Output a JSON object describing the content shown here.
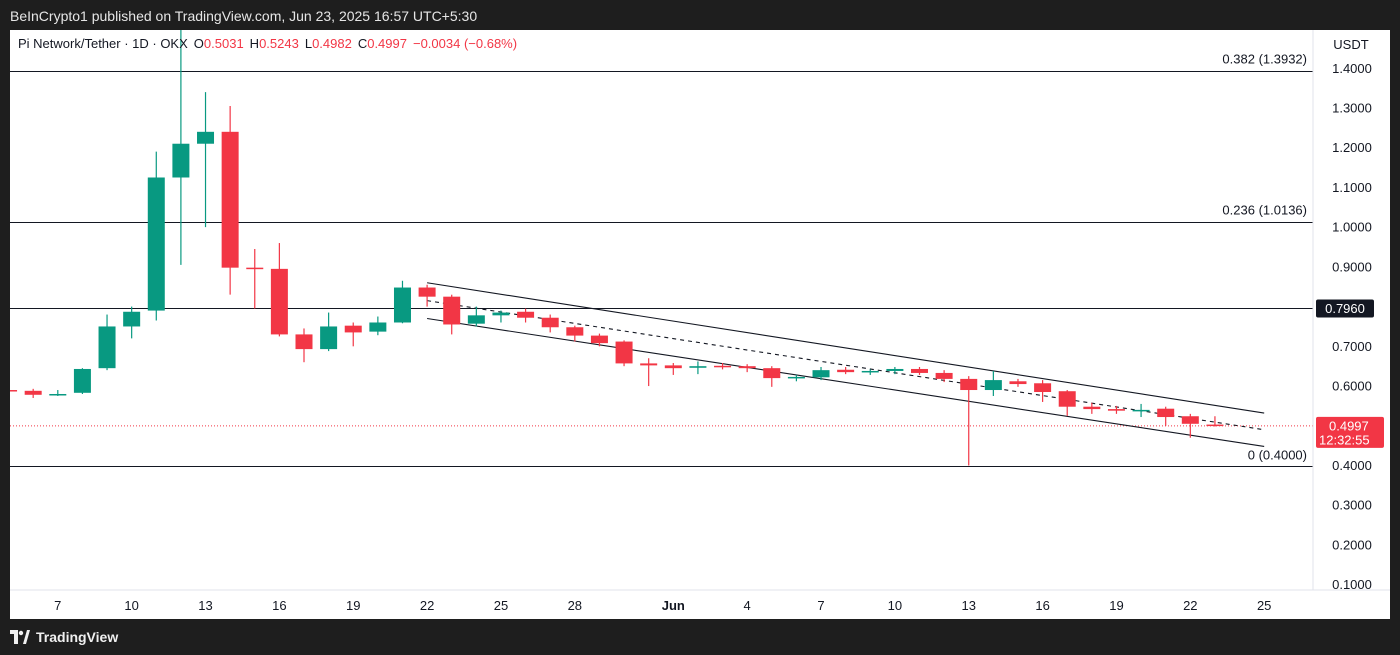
{
  "header": {
    "published": "BeInCrypto1 published on TradingView.com, Jun 23, 2025 16:57 UTC+5:30"
  },
  "legend": {
    "symbol": "Pi Network/Tether · 1D · OKX",
    "o_label": "O",
    "o_value": "0.5031",
    "h_label": "H",
    "h_value": "0.5243",
    "l_label": "L",
    "l_value": "0.4982",
    "c_label": "C",
    "c_value": "0.4997",
    "change": "−0.0034 (−0.68%)"
  },
  "footer": {
    "brand": "TradingView"
  },
  "colors": {
    "up": "#089981",
    "down": "#f23645",
    "line": "#131722",
    "text": "#131722",
    "axis_text": "#131722",
    "price_label_bg": "#f23645",
    "level_label_bg": "#131722"
  },
  "chart_data": {
    "type": "candlestick",
    "currency": "USDT",
    "ylim": [
      0.05,
      1.5
    ],
    "y_ticks": [
      "1.4000",
      "1.3000",
      "1.2000",
      "1.1000",
      "1.0000",
      "0.9000",
      "0.8000",
      "0.7000",
      "0.6000",
      "0.5000",
      "0.4000",
      "0.3000",
      "0.2000",
      "0.1000"
    ],
    "y_tick_values": [
      1.4,
      1.3,
      1.2,
      1.1,
      1.0,
      0.9,
      0.8,
      0.7,
      0.6,
      0.5,
      0.4,
      0.3,
      0.2,
      0.1
    ],
    "x_ticks": [
      {
        "label": "7",
        "day": 7
      },
      {
        "label": "10",
        "day": 10
      },
      {
        "label": "13",
        "day": 13
      },
      {
        "label": "16",
        "day": 16
      },
      {
        "label": "19",
        "day": 19
      },
      {
        "label": "22",
        "day": 22
      },
      {
        "label": "25",
        "day": 25
      },
      {
        "label": "28",
        "day": 28
      },
      {
        "label": "Jun",
        "day": 32,
        "bold": true
      },
      {
        "label": "4",
        "day": 35
      },
      {
        "label": "7",
        "day": 38
      },
      {
        "label": "10",
        "day": 41
      },
      {
        "label": "13",
        "day": 44
      },
      {
        "label": "16",
        "day": 47
      },
      {
        "label": "19",
        "day": 50
      },
      {
        "label": "22",
        "day": 53
      },
      {
        "label": "25",
        "day": 56
      }
    ],
    "candles": [
      {
        "d": 5,
        "o": 0.59,
        "h": 0.595,
        "l": 0.585,
        "c": 0.588
      },
      {
        "d": 6,
        "o": 0.588,
        "h": 0.593,
        "l": 0.57,
        "c": 0.578
      },
      {
        "d": 7,
        "o": 0.578,
        "h": 0.59,
        "l": 0.575,
        "c": 0.58
      },
      {
        "d": 8,
        "o": 0.583,
        "h": 0.645,
        "l": 0.58,
        "c": 0.643
      },
      {
        "d": 9,
        "o": 0.645,
        "h": 0.78,
        "l": 0.64,
        "c": 0.75
      },
      {
        "d": 10,
        "o": 0.75,
        "h": 0.8,
        "l": 0.72,
        "c": 0.787
      },
      {
        "d": 11,
        "o": 0.79,
        "h": 1.19,
        "l": 0.765,
        "c": 1.125
      },
      {
        "d": 12,
        "o": 1.125,
        "h": 1.66,
        "l": 0.905,
        "c": 1.21
      },
      {
        "d": 13,
        "o": 1.21,
        "h": 1.34,
        "l": 1.0,
        "c": 1.24
      },
      {
        "d": 14,
        "o": 1.24,
        "h": 1.305,
        "l": 0.83,
        "c": 0.898
      },
      {
        "d": 15,
        "o": 0.898,
        "h": 0.945,
        "l": 0.795,
        "c": 0.895
      },
      {
        "d": 16,
        "o": 0.895,
        "h": 0.96,
        "l": 0.725,
        "c": 0.73
      },
      {
        "d": 17,
        "o": 0.73,
        "h": 0.745,
        "l": 0.66,
        "c": 0.693
      },
      {
        "d": 18,
        "o": 0.693,
        "h": 0.785,
        "l": 0.688,
        "c": 0.75
      },
      {
        "d": 19,
        "o": 0.752,
        "h": 0.76,
        "l": 0.7,
        "c": 0.735
      },
      {
        "d": 20,
        "o": 0.737,
        "h": 0.775,
        "l": 0.728,
        "c": 0.76
      },
      {
        "d": 21,
        "o": 0.76,
        "h": 0.865,
        "l": 0.758,
        "c": 0.848
      },
      {
        "d": 22,
        "o": 0.848,
        "h": 0.855,
        "l": 0.8,
        "c": 0.825
      },
      {
        "d": 23,
        "o": 0.825,
        "h": 0.83,
        "l": 0.73,
        "c": 0.755
      },
      {
        "d": 24,
        "o": 0.757,
        "h": 0.8,
        "l": 0.75,
        "c": 0.778
      },
      {
        "d": 25,
        "o": 0.778,
        "h": 0.79,
        "l": 0.76,
        "c": 0.785
      },
      {
        "d": 26,
        "o": 0.787,
        "h": 0.795,
        "l": 0.76,
        "c": 0.772
      },
      {
        "d": 27,
        "o": 0.772,
        "h": 0.78,
        "l": 0.735,
        "c": 0.748
      },
      {
        "d": 28,
        "o": 0.748,
        "h": 0.752,
        "l": 0.712,
        "c": 0.727
      },
      {
        "d": 29,
        "o": 0.727,
        "h": 0.732,
        "l": 0.7,
        "c": 0.708
      },
      {
        "d": 30,
        "o": 0.712,
        "h": 0.715,
        "l": 0.65,
        "c": 0.657
      },
      {
        "d": 31,
        "o": 0.657,
        "h": 0.67,
        "l": 0.6,
        "c": 0.652
      },
      {
        "d": 32,
        "o": 0.652,
        "h": 0.658,
        "l": 0.628,
        "c": 0.645
      },
      {
        "d": 33,
        "o": 0.646,
        "h": 0.662,
        "l": 0.63,
        "c": 0.65
      },
      {
        "d": 34,
        "o": 0.651,
        "h": 0.658,
        "l": 0.642,
        "c": 0.648
      },
      {
        "d": 35,
        "o": 0.65,
        "h": 0.655,
        "l": 0.635,
        "c": 0.645
      },
      {
        "d": 36,
        "o": 0.645,
        "h": 0.65,
        "l": 0.598,
        "c": 0.62
      },
      {
        "d": 37,
        "o": 0.62,
        "h": 0.628,
        "l": 0.612,
        "c": 0.623
      },
      {
        "d": 38,
        "o": 0.622,
        "h": 0.648,
        "l": 0.615,
        "c": 0.64
      },
      {
        "d": 39,
        "o": 0.641,
        "h": 0.648,
        "l": 0.63,
        "c": 0.635
      },
      {
        "d": 40,
        "o": 0.635,
        "h": 0.642,
        "l": 0.628,
        "c": 0.638
      },
      {
        "d": 41,
        "o": 0.638,
        "h": 0.648,
        "l": 0.63,
        "c": 0.643
      },
      {
        "d": 42,
        "o": 0.643,
        "h": 0.648,
        "l": 0.628,
        "c": 0.633
      },
      {
        "d": 43,
        "o": 0.633,
        "h": 0.64,
        "l": 0.61,
        "c": 0.618
      },
      {
        "d": 44,
        "o": 0.618,
        "h": 0.625,
        "l": 0.4,
        "c": 0.59
      },
      {
        "d": 45,
        "o": 0.59,
        "h": 0.638,
        "l": 0.575,
        "c": 0.615
      },
      {
        "d": 46,
        "o": 0.612,
        "h": 0.618,
        "l": 0.598,
        "c": 0.605
      },
      {
        "d": 47,
        "o": 0.607,
        "h": 0.615,
        "l": 0.56,
        "c": 0.585
      },
      {
        "d": 48,
        "o": 0.587,
        "h": 0.59,
        "l": 0.525,
        "c": 0.548
      },
      {
        "d": 49,
        "o": 0.548,
        "h": 0.558,
        "l": 0.53,
        "c": 0.542
      },
      {
        "d": 50,
        "o": 0.542,
        "h": 0.55,
        "l": 0.53,
        "c": 0.538
      },
      {
        "d": 51,
        "o": 0.538,
        "h": 0.555,
        "l": 0.522,
        "c": 0.54
      },
      {
        "d": 52,
        "o": 0.543,
        "h": 0.548,
        "l": 0.5,
        "c": 0.522
      },
      {
        "d": 53,
        "o": 0.524,
        "h": 0.53,
        "l": 0.47,
        "c": 0.505
      },
      {
        "d": 54,
        "o": 0.503,
        "h": 0.524,
        "l": 0.498,
        "c": 0.5
      }
    ],
    "horizontal_levels": [
      {
        "value": 1.3932,
        "label": "0.382 (1.3932)"
      },
      {
        "value": 1.0136,
        "label": "0.236 (1.0136)"
      },
      {
        "value": 0.796,
        "label": "0.7960",
        "boxed": true
      },
      {
        "value": 0.4,
        "label": "0 (0.4000)"
      }
    ],
    "channel": {
      "upper": {
        "d1": 22,
        "v1": 0.86,
        "d2": 56,
        "v2": 0.532
      },
      "lower": {
        "d1": 22,
        "v1": 0.77,
        "d2": 56,
        "v2": 0.448
      },
      "mid": {
        "d1": 22,
        "v1": 0.815,
        "d2": 56,
        "v2": 0.49
      }
    },
    "last_price": {
      "value": 0.4997,
      "label": "0.4997",
      "countdown": "12:32:55"
    },
    "x_range": [
      4.7,
      57.7
    ]
  }
}
